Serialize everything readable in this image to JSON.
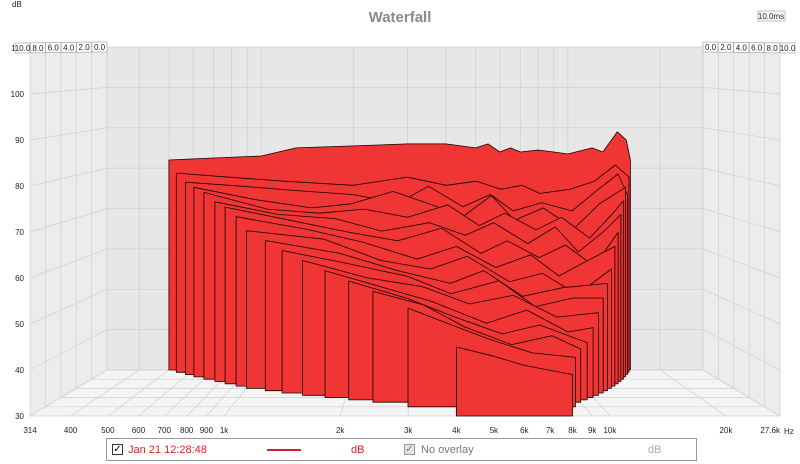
{
  "chart_data": {
    "type": "waterfall",
    "title": "Waterfall",
    "y_unit": "dB",
    "y_ticks": [
      30,
      40,
      50,
      60,
      70,
      80,
      90,
      100,
      110
    ],
    "ylim": [
      30,
      110
    ],
    "x_unit": "Hz",
    "x_ticks": [
      {
        "v": 314,
        "label": "314"
      },
      {
        "v": 400,
        "label": "400"
      },
      {
        "v": 500,
        "label": "500"
      },
      {
        "v": 600,
        "label": "600"
      },
      {
        "v": 700,
        "label": "700"
      },
      {
        "v": 800,
        "label": "800"
      },
      {
        "v": 900,
        "label": "900"
      },
      {
        "v": 1000,
        "label": "1k"
      },
      {
        "v": 2000,
        "label": "2k"
      },
      {
        "v": 3000,
        "label": "3k"
      },
      {
        "v": 4000,
        "label": "4k"
      },
      {
        "v": 5000,
        "label": "5k"
      },
      {
        "v": 6000,
        "label": "6k"
      },
      {
        "v": 7000,
        "label": "7k"
      },
      {
        "v": 8000,
        "label": "8k"
      },
      {
        "v": 9000,
        "label": "9k"
      },
      {
        "v": 10000,
        "label": "10k"
      },
      {
        "v": 20000,
        "label": "20k"
      },
      {
        "v": 27600,
        "label": "27.6k"
      }
    ],
    "xlim": [
      314,
      27600
    ],
    "x_scale": "log",
    "time_unit": "ms",
    "time_ticks": [
      "0.0",
      "2.0",
      "4.0",
      "6.0",
      "8.0",
      "10.0"
    ],
    "time_max_label": "10.0ms",
    "slices": [
      {
        "t": 0.0,
        "f_start": 500,
        "f_end": 16000,
        "points": [
          [
            500,
            82
          ],
          [
            700,
            82.5
          ],
          [
            1000,
            83
          ],
          [
            1300,
            85
          ],
          [
            2000,
            85.5
          ],
          [
            3000,
            86
          ],
          [
            4000,
            86
          ],
          [
            5000,
            85
          ],
          [
            5500,
            86
          ],
          [
            6000,
            84
          ],
          [
            6500,
            85
          ],
          [
            7000,
            84
          ],
          [
            8000,
            84.5
          ],
          [
            9000,
            84
          ],
          [
            10000,
            83.5
          ],
          [
            12000,
            85
          ],
          [
            13000,
            84
          ],
          [
            14500,
            89
          ],
          [
            15500,
            87
          ],
          [
            16000,
            82
          ]
        ]
      },
      {
        "t": 0.5,
        "f_start": 540,
        "f_end": 15500,
        "points": [
          [
            540,
            79
          ],
          [
            800,
            78
          ],
          [
            1200,
            77
          ],
          [
            2000,
            76
          ],
          [
            3000,
            78
          ],
          [
            4000,
            76
          ],
          [
            5000,
            77
          ],
          [
            6000,
            75
          ],
          [
            7000,
            76
          ],
          [
            8000,
            74
          ],
          [
            10000,
            75
          ],
          [
            12000,
            77
          ],
          [
            14000,
            81
          ],
          [
            15500,
            78
          ]
        ]
      },
      {
        "t": 1.0,
        "f_start": 590,
        "f_end": 15000,
        "points": [
          [
            590,
            77
          ],
          [
            900,
            76
          ],
          [
            1300,
            75
          ],
          [
            2000,
            74
          ],
          [
            2800,
            72
          ],
          [
            3500,
            76
          ],
          [
            4500,
            71
          ],
          [
            5500,
            74
          ],
          [
            6500,
            70
          ],
          [
            8000,
            72
          ],
          [
            10000,
            70
          ],
          [
            12000,
            75
          ],
          [
            14000,
            79
          ],
          [
            15000,
            74
          ]
        ]
      },
      {
        "t": 1.5,
        "f_start": 640,
        "f_end": 14500,
        "points": [
          [
            640,
            76
          ],
          [
            1000,
            73
          ],
          [
            1500,
            71
          ],
          [
            2000,
            72
          ],
          [
            2700,
            75
          ],
          [
            3500,
            72
          ],
          [
            4500,
            69
          ],
          [
            5500,
            74
          ],
          [
            6500,
            68
          ],
          [
            8000,
            71
          ],
          [
            10000,
            66
          ],
          [
            12000,
            72
          ],
          [
            14500,
            76
          ]
        ]
      },
      {
        "t": 2.0,
        "f_start": 700,
        "f_end": 14000,
        "points": [
          [
            700,
            75
          ],
          [
            1100,
            71
          ],
          [
            1600,
            70
          ],
          [
            2200,
            71
          ],
          [
            3000,
            69
          ],
          [
            4000,
            72
          ],
          [
            5000,
            67
          ],
          [
            6000,
            70
          ],
          [
            7500,
            66
          ],
          [
            9000,
            69
          ],
          [
            11000,
            64
          ],
          [
            13000,
            70
          ],
          [
            14000,
            73
          ]
        ]
      },
      {
        "t": 2.5,
        "f_start": 770,
        "f_end": 13500,
        "points": [
          [
            770,
            73
          ],
          [
            1200,
            70
          ],
          [
            1800,
            69
          ],
          [
            2500,
            66
          ],
          [
            3500,
            68
          ],
          [
            4500,
            65
          ],
          [
            5500,
            68
          ],
          [
            7000,
            63
          ],
          [
            8500,
            67
          ],
          [
            10000,
            61
          ],
          [
            12000,
            66
          ],
          [
            13500,
            70
          ]
        ]
      },
      {
        "t": 3.0,
        "f_start": 840,
        "f_end": 13000,
        "points": [
          [
            840,
            72
          ],
          [
            1300,
            69
          ],
          [
            2000,
            66
          ],
          [
            2800,
            64
          ],
          [
            3800,
            67
          ],
          [
            5000,
            61
          ],
          [
            6000,
            64
          ],
          [
            7500,
            60
          ],
          [
            9000,
            63
          ],
          [
            11000,
            58
          ],
          [
            13000,
            66
          ]
        ]
      },
      {
        "t": 3.5,
        "f_start": 920,
        "f_end": 12500,
        "points": [
          [
            920,
            70
          ],
          [
            1500,
            67
          ],
          [
            2200,
            64
          ],
          [
            3200,
            60
          ],
          [
            4200,
            63
          ],
          [
            5500,
            58
          ],
          [
            7000,
            61
          ],
          [
            8500,
            56
          ],
          [
            10000,
            59
          ],
          [
            12500,
            63
          ]
        ]
      },
      {
        "t": 4.0,
        "f_start": 1000,
        "f_end": 12000,
        "points": [
          [
            1000,
            67
          ],
          [
            1700,
            65
          ],
          [
            2500,
            60
          ],
          [
            3500,
            58
          ],
          [
            4500,
            61
          ],
          [
            6000,
            55
          ],
          [
            7500,
            57
          ],
          [
            9500,
            52
          ],
          [
            12000,
            58
          ]
        ]
      },
      {
        "t": 4.5,
        "f_start": 1150,
        "f_end": 11500,
        "points": [
          [
            1150,
            65
          ],
          [
            1900,
            62
          ],
          [
            2800,
            58
          ],
          [
            4000,
            55
          ],
          [
            5000,
            58
          ],
          [
            6500,
            52
          ],
          [
            8500,
            54
          ],
          [
            11500,
            55
          ]
        ]
      },
      {
        "t": 5.0,
        "f_start": 1300,
        "f_end": 11000,
        "points": [
          [
            1300,
            63
          ],
          [
            2000,
            60
          ],
          [
            3000,
            57
          ],
          [
            4000,
            53
          ],
          [
            5500,
            56
          ],
          [
            7000,
            50
          ],
          [
            9000,
            52
          ],
          [
            11000,
            52
          ]
        ]
      },
      {
        "t": 5.5,
        "f_start": 1500,
        "f_end": 10500,
        "points": [
          [
            1500,
            61
          ],
          [
            2300,
            57
          ],
          [
            3300,
            55
          ],
          [
            4500,
            51
          ],
          [
            6000,
            53
          ],
          [
            8000,
            48
          ],
          [
            10500,
            49
          ]
        ]
      },
      {
        "t": 6.0,
        "f_start": 1750,
        "f_end": 10000,
        "points": [
          [
            1750,
            59
          ],
          [
            2600,
            55
          ],
          [
            3500,
            52
          ],
          [
            5000,
            47
          ],
          [
            6500,
            50
          ],
          [
            8500,
            45
          ],
          [
            10000,
            46
          ]
        ]
      },
      {
        "t": 6.5,
        "f_start": 2050,
        "f_end": 9500,
        "points": [
          [
            2050,
            57
          ],
          [
            3000,
            53
          ],
          [
            4000,
            49
          ],
          [
            5500,
            45
          ],
          [
            7000,
            47
          ],
          [
            9500,
            43
          ]
        ]
      },
      {
        "t": 7.0,
        "f_start": 2400,
        "f_end": 9000,
        "points": [
          [
            2400,
            55
          ],
          [
            3300,
            52
          ],
          [
            4300,
            47
          ],
          [
            5800,
            43
          ],
          [
            7500,
            45
          ],
          [
            9000,
            42
          ]
        ]
      },
      {
        "t": 8.0,
        "f_start": 3000,
        "f_end": 8500,
        "points": [
          [
            3000,
            52
          ],
          [
            4000,
            48
          ],
          [
            5000,
            45
          ],
          [
            6500,
            42
          ],
          [
            8500,
            41
          ]
        ]
      },
      {
        "t": 10.0,
        "f_start": 4000,
        "f_end": 8000,
        "points": [
          [
            4000,
            45
          ],
          [
            5000,
            43
          ],
          [
            6000,
            41
          ],
          [
            8000,
            39
          ]
        ]
      }
    ]
  },
  "legend": {
    "entries": [
      {
        "checked": true,
        "label": "Jan 21 12:28:48",
        "unit": "dB",
        "color": "#e02020",
        "line_color": "#cc2222"
      },
      {
        "checked": true,
        "disabled": true,
        "label": "No overlay",
        "unit": "dB"
      }
    ]
  },
  "colors": {
    "fill": "#f03535",
    "outline": "#1a0000",
    "grid": "#cfcfcf",
    "floor": "#f4f4f4",
    "wall": "#e7e7e7",
    "title": "#8a8a8a"
  }
}
